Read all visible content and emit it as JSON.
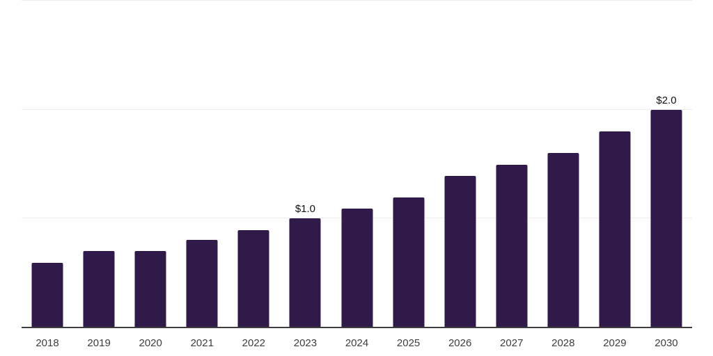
{
  "chart_data": {
    "type": "bar",
    "title": "",
    "xlabel": "",
    "ylabel": "",
    "categories": [
      "2018",
      "2019",
      "2020",
      "2021",
      "2022",
      "2023",
      "2024",
      "2025",
      "2026",
      "2027",
      "2028",
      "2029",
      "2030"
    ],
    "values": [
      0.59,
      0.7,
      0.7,
      0.8,
      0.89,
      1.0,
      1.09,
      1.19,
      1.39,
      1.49,
      1.6,
      1.8,
      2.0
    ],
    "data_labels": [
      "",
      "",
      "",
      "",
      "",
      "$1.0",
      "",
      "",
      "",
      "",
      "",
      "",
      "$2.0"
    ],
    "ylim": [
      0,
      3.0
    ],
    "gridlines_at": [
      1.0,
      2.0,
      3.0
    ],
    "grid": "horizontal-only",
    "legend": "none",
    "y_axis_tick_labels": "none",
    "colors": {
      "bar": "#301a49",
      "gridline": "#ececec",
      "axis_line": "#3d3d3d",
      "tick_label": "#3d3d3d",
      "data_label": "#111111",
      "background": "#ffffff"
    }
  }
}
